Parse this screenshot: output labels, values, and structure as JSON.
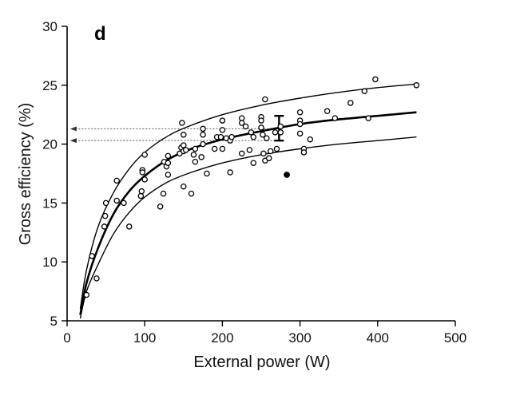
{
  "chart_data": {
    "type": "scatter",
    "panel_label": "d",
    "xlabel": "External power (W)",
    "ylabel": "Gross efficiency (%)",
    "xlim": [
      0,
      500
    ],
    "ylim": [
      5,
      30
    ],
    "xticks": [
      0,
      100,
      200,
      300,
      400,
      500
    ],
    "yticks": [
      5,
      10,
      15,
      20,
      25,
      30
    ],
    "grid": false,
    "legend": "none",
    "curves": {
      "mean": {
        "x": [
          17,
          25,
          40,
          60,
          80,
          100,
          130,
          160,
          200,
          250,
          300,
          350,
          400,
          450
        ],
        "y": [
          5.5,
          8.2,
          11.2,
          14.1,
          16.0,
          17.3,
          18.7,
          19.6,
          20.4,
          21.1,
          21.7,
          22.1,
          22.4,
          22.7
        ]
      },
      "upper": {
        "x": [
          17,
          25,
          40,
          60,
          80,
          100,
          130,
          160,
          200,
          250,
          300,
          350,
          400,
          450
        ],
        "y": [
          6.0,
          9.3,
          13.0,
          15.9,
          17.9,
          19.3,
          20.7,
          21.6,
          22.5,
          23.3,
          23.9,
          24.4,
          24.8,
          25.1
        ]
      },
      "lower": {
        "x": [
          17,
          25,
          40,
          60,
          80,
          100,
          130,
          160,
          200,
          250,
          300,
          350,
          400,
          450
        ],
        "y": [
          5.2,
          7.5,
          9.8,
          12.4,
          14.2,
          15.5,
          16.8,
          17.6,
          18.4,
          19.1,
          19.6,
          20.0,
          20.3,
          20.6
        ]
      }
    },
    "open_points": [
      {
        "x": 25,
        "y": 7.2
      },
      {
        "x": 32,
        "y": 10.5
      },
      {
        "x": 38,
        "y": 8.6
      },
      {
        "x": 48,
        "y": 13.0
      },
      {
        "x": 49,
        "y": 13.9
      },
      {
        "x": 50,
        "y": 15.0
      },
      {
        "x": 64,
        "y": 15.2
      },
      {
        "x": 64,
        "y": 16.9
      },
      {
        "x": 73,
        "y": 15.0
      },
      {
        "x": 80,
        "y": 13.0
      },
      {
        "x": 95,
        "y": 15.6
      },
      {
        "x": 96,
        "y": 16.0
      },
      {
        "x": 97,
        "y": 17.8
      },
      {
        "x": 97,
        "y": 17.6
      },
      {
        "x": 100,
        "y": 19.1
      },
      {
        "x": 100,
        "y": 17.0
      },
      {
        "x": 120,
        "y": 14.7
      },
      {
        "x": 124,
        "y": 15.8
      },
      {
        "x": 125,
        "y": 18.5
      },
      {
        "x": 128,
        "y": 18.1
      },
      {
        "x": 130,
        "y": 17.4
      },
      {
        "x": 130,
        "y": 18.4
      },
      {
        "x": 130,
        "y": 19.0
      },
      {
        "x": 145,
        "y": 19.2
      },
      {
        "x": 147,
        "y": 19.7
      },
      {
        "x": 150,
        "y": 19.9
      },
      {
        "x": 150,
        "y": 19.4
      },
      {
        "x": 148,
        "y": 21.8
      },
      {
        "x": 150,
        "y": 20.8
      },
      {
        "x": 150,
        "y": 16.4
      },
      {
        "x": 153,
        "y": 19.5
      },
      {
        "x": 160,
        "y": 15.8
      },
      {
        "x": 163,
        "y": 19.1
      },
      {
        "x": 165,
        "y": 19.6
      },
      {
        "x": 165,
        "y": 18.5
      },
      {
        "x": 173,
        "y": 18.9
      },
      {
        "x": 175,
        "y": 20.0
      },
      {
        "x": 175,
        "y": 20.8
      },
      {
        "x": 175,
        "y": 21.3
      },
      {
        "x": 180,
        "y": 17.5
      },
      {
        "x": 190,
        "y": 19.6
      },
      {
        "x": 193,
        "y": 20.6
      },
      {
        "x": 198,
        "y": 20.6
      },
      {
        "x": 200,
        "y": 22.0
      },
      {
        "x": 200,
        "y": 21.2
      },
      {
        "x": 200,
        "y": 19.6
      },
      {
        "x": 205,
        "y": 20.5
      },
      {
        "x": 210,
        "y": 17.6
      },
      {
        "x": 210,
        "y": 20.3
      },
      {
        "x": 212,
        "y": 20.6
      },
      {
        "x": 225,
        "y": 22.2
      },
      {
        "x": 225,
        "y": 21.8
      },
      {
        "x": 225,
        "y": 19.2
      },
      {
        "x": 230,
        "y": 21.5
      },
      {
        "x": 235,
        "y": 19.5
      },
      {
        "x": 237,
        "y": 21.0
      },
      {
        "x": 240,
        "y": 20.6
      },
      {
        "x": 240,
        "y": 18.4
      },
      {
        "x": 250,
        "y": 22.3
      },
      {
        "x": 250,
        "y": 22.0
      },
      {
        "x": 250,
        "y": 21.4
      },
      {
        "x": 252,
        "y": 20.8
      },
      {
        "x": 253,
        "y": 19.2
      },
      {
        "x": 255,
        "y": 23.8
      },
      {
        "x": 255,
        "y": 18.6
      },
      {
        "x": 257,
        "y": 20.5
      },
      {
        "x": 260,
        "y": 18.8
      },
      {
        "x": 262,
        "y": 19.4
      },
      {
        "x": 268,
        "y": 21.0
      },
      {
        "x": 270,
        "y": 19.6
      },
      {
        "x": 275,
        "y": 21.5
      },
      {
        "x": 275,
        "y": 21.0
      },
      {
        "x": 300,
        "y": 22.7
      },
      {
        "x": 300,
        "y": 22.0
      },
      {
        "x": 300,
        "y": 21.7
      },
      {
        "x": 300,
        "y": 20.9
      },
      {
        "x": 305,
        "y": 19.6
      },
      {
        "x": 305,
        "y": 19.3
      },
      {
        "x": 313,
        "y": 20.4
      },
      {
        "x": 335,
        "y": 22.8
      },
      {
        "x": 345,
        "y": 22.2
      },
      {
        "x": 365,
        "y": 23.5
      },
      {
        "x": 383,
        "y": 24.5
      },
      {
        "x": 388,
        "y": 22.2
      },
      {
        "x": 397,
        "y": 25.5
      },
      {
        "x": 450,
        "y": 25.0
      }
    ],
    "filled_points": [
      {
        "x": 283,
        "y": 17.4
      }
    ],
    "error_bar": {
      "x": 273,
      "y_low": 20.3,
      "y_high": 22.4
    },
    "reference_arrows": [
      {
        "y": 21.3,
        "from_x": 272,
        "to_x": 5
      },
      {
        "y": 20.3,
        "from_x": 272,
        "to_x": 5
      }
    ],
    "colors": {
      "line": "#000000",
      "marker_fill": "#ffffff",
      "marker_stroke": "#000000",
      "arrow": "#555555"
    }
  }
}
